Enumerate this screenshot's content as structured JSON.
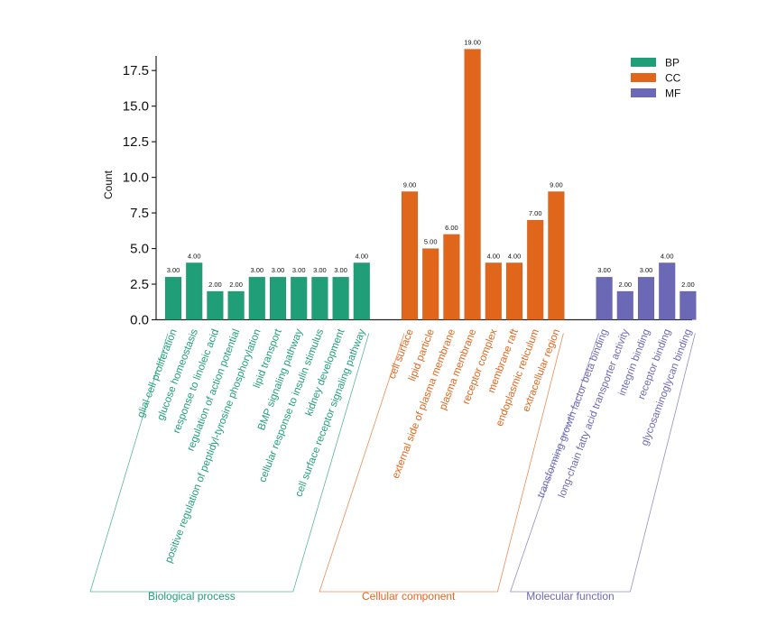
{
  "chart_data": {
    "type": "bar",
    "ylabel": "Count",
    "ylim": [
      0,
      19
    ],
    "yticks": [
      0.0,
      2.5,
      5.0,
      7.5,
      10.0,
      12.5,
      15.0,
      17.5
    ],
    "ytick_labels": [
      "0.0",
      "2.5",
      "5.0",
      "7.5",
      "10.0",
      "12.5",
      "15.0",
      "17.5"
    ],
    "legend_position": "top-right",
    "groups": [
      {
        "name": "BP",
        "label": "Biological process",
        "color": "#1f9e78",
        "bars": [
          {
            "category": "glial cell proliferation",
            "value": 3,
            "value_label": "3.00"
          },
          {
            "category": "glucose homeostasis",
            "value": 4,
            "value_label": "4.00"
          },
          {
            "category": "response to linoleic acid",
            "value": 2,
            "value_label": "2.00"
          },
          {
            "category": "regulation of action potential",
            "value": 2,
            "value_label": "2.00"
          },
          {
            "category": "positive regulation of peptidyl-tyrosine phosphorylation",
            "value": 3,
            "value_label": "3.00"
          },
          {
            "category": "lipid transport",
            "value": 3,
            "value_label": "3.00"
          },
          {
            "category": "BMP signaling pathway",
            "value": 3,
            "value_label": "3.00"
          },
          {
            "category": "cellular response to insulin stimulus",
            "value": 3,
            "value_label": "3.00"
          },
          {
            "category": "kidney development",
            "value": 3,
            "value_label": "3.00"
          },
          {
            "category": "cell surface receptor signaling pathway",
            "value": 4,
            "value_label": "4.00"
          }
        ]
      },
      {
        "name": "CC",
        "label": "Cellular component",
        "color": "#e0661c",
        "bars": [
          {
            "category": "cell surface",
            "value": 9,
            "value_label": "9.00"
          },
          {
            "category": "lipid particle",
            "value": 5,
            "value_label": "5.00"
          },
          {
            "category": "external side of plasma membrane",
            "value": 6,
            "value_label": "6.00"
          },
          {
            "category": "plasma membrane",
            "value": 19,
            "value_label": "19.00"
          },
          {
            "category": "receptor complex",
            "value": 4,
            "value_label": "4.00"
          },
          {
            "category": "membrane raft",
            "value": 4,
            "value_label": "4.00"
          },
          {
            "category": "endoplasmic reticulum",
            "value": 7,
            "value_label": "7.00"
          },
          {
            "category": "extracellular region",
            "value": 9,
            "value_label": "9.00"
          }
        ]
      },
      {
        "name": "MF",
        "label": "Molecular function",
        "color": "#6b69b5",
        "bars": [
          {
            "category": "transforming growth factor beta binding",
            "value": 3,
            "value_label": "3.00"
          },
          {
            "category": "long-chain fatty acid transporter activity",
            "value": 2,
            "value_label": "2.00"
          },
          {
            "category": "integrin binding",
            "value": 3,
            "value_label": "3.00"
          },
          {
            "category": "receptor binding",
            "value": 4,
            "value_label": "4.00"
          },
          {
            "category": "glycosaminoglycan binding",
            "value": 2,
            "value_label": "2.00"
          }
        ]
      }
    ]
  }
}
